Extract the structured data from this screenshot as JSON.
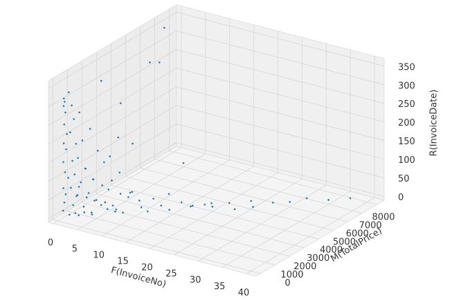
{
  "chart_data": {
    "type": "scatter3d",
    "x_label": "F(InvoiceNo)",
    "y_label": "M(TotalPrice)",
    "z_label": "R(InvoiceDate)",
    "xlim": [
      -1,
      42
    ],
    "ylim": [
      -300,
      8500
    ],
    "zlim": [
      -10,
      370
    ],
    "xticks": [
      0,
      5,
      10,
      15,
      20,
      25,
      30,
      35,
      40
    ],
    "yticks": [
      0,
      1000,
      2000,
      3000,
      4000,
      5000,
      6000,
      7000,
      8000
    ],
    "zticks": [
      0,
      50,
      100,
      150,
      200,
      250,
      300,
      350
    ],
    "grid": true,
    "series": [
      {
        "color": "#1f77b4",
        "x": [
          1,
          1,
          1,
          1,
          1,
          1,
          1,
          1,
          1,
          1,
          1,
          1,
          1,
          1,
          1,
          2,
          2,
          2,
          2,
          2,
          2,
          2,
          2,
          2,
          2,
          2,
          2,
          3,
          3,
          3,
          3,
          3,
          3,
          3,
          3,
          3,
          4,
          4,
          4,
          4,
          4,
          4,
          4,
          5,
          5,
          5,
          5,
          5,
          5,
          6,
          6,
          6,
          6,
          7,
          7,
          7,
          7,
          8,
          8,
          8,
          9,
          9,
          10,
          10,
          11,
          12,
          12,
          13,
          14,
          15,
          16,
          17,
          18,
          19,
          20,
          21,
          22,
          24,
          25,
          26,
          28,
          30,
          32,
          35,
          38,
          2,
          3,
          4,
          6,
          9,
          11,
          14,
          1,
          1,
          2
        ],
        "y": [
          100,
          150,
          80,
          200,
          120,
          300,
          90,
          250,
          60,
          180,
          400,
          70,
          220,
          130,
          50,
          300,
          450,
          200,
          600,
          350,
          500,
          250,
          700,
          400,
          150,
          800,
          550,
          500,
          700,
          400,
          900,
          600,
          300,
          1000,
          800,
          450,
          900,
          600,
          1100,
          800,
          1200,
          500,
          1000,
          1100,
          800,
          1400,
          1000,
          1600,
          700,
          1200,
          1500,
          1000,
          1800,
          1400,
          2000,
          1100,
          1700,
          1600,
          2200,
          1300,
          2000,
          1500,
          2300,
          1800,
          2100,
          2600,
          2200,
          2800,
          3000,
          2700,
          3200,
          3500,
          3300,
          3800,
          4000,
          3600,
          4500,
          4200,
          5000,
          4800,
          5500,
          6000,
          6500,
          7000,
          7500,
          100,
          2000,
          3000,
          5000,
          600,
          1500,
          4000,
          6000,
          7000,
          3500
        ],
        "z": [
          320,
          310,
          300,
          280,
          250,
          220,
          200,
          180,
          150,
          120,
          100,
          80,
          60,
          40,
          20,
          300,
          260,
          230,
          190,
          150,
          110,
          80,
          50,
          30,
          10,
          70,
          5,
          280,
          200,
          160,
          120,
          90,
          60,
          40,
          20,
          5,
          230,
          130,
          90,
          60,
          30,
          15,
          3,
          170,
          100,
          70,
          40,
          20,
          8,
          140,
          60,
          30,
          10,
          90,
          40,
          20,
          5,
          110,
          30,
          12,
          50,
          8,
          25,
          60,
          15,
          30,
          5,
          10,
          40,
          8,
          20,
          5,
          15,
          10,
          3,
          25,
          8,
          5,
          12,
          4,
          6,
          3,
          8,
          2,
          5,
          340,
          330,
          250,
          320,
          180,
          200,
          100,
          280,
          350,
          140
        ]
      }
    ]
  }
}
